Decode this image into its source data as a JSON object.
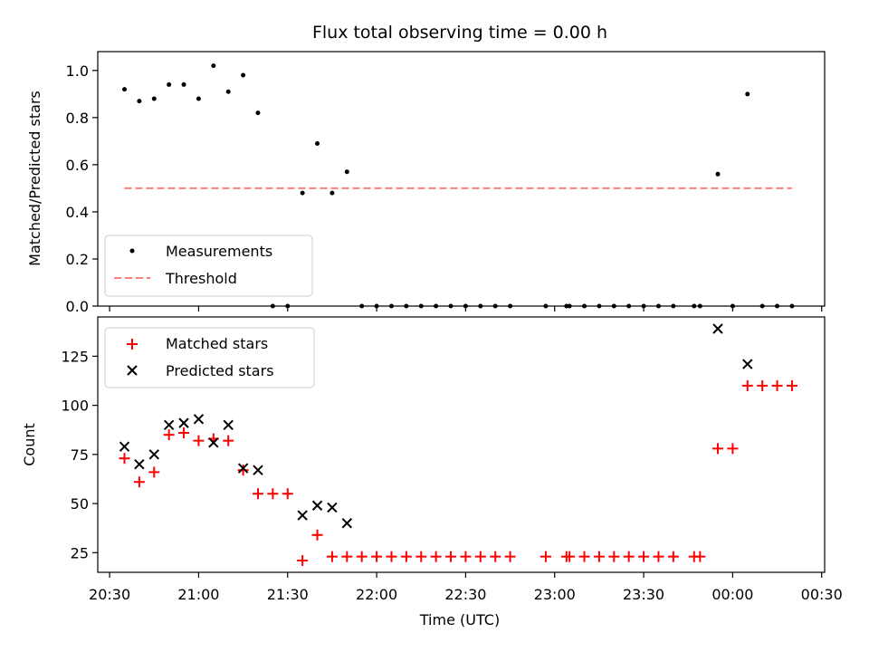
{
  "chart_data": [
    {
      "type": "scatter",
      "title": "Flux total observing time = 0.00 h",
      "xlabel": "",
      "ylabel": "Matched/Predicted stars",
      "ylim": [
        0,
        1.08
      ],
      "yticks": [
        "0.0",
        "0.2",
        "0.4",
        "0.6",
        "0.8",
        "1.0"
      ],
      "legend_position": "lower-left",
      "threshold": {
        "name": "Threshold",
        "value": 0.5,
        "x_range": [
          "20:35",
          "00:20"
        ],
        "color": "#ff7f7f",
        "style": "dashed"
      },
      "series": [
        {
          "name": "Measurements",
          "color": "#000000",
          "points": [
            {
              "x": "20:35",
              "y": 0.92
            },
            {
              "x": "20:40",
              "y": 0.87
            },
            {
              "x": "20:45",
              "y": 0.88
            },
            {
              "x": "20:50",
              "y": 0.94
            },
            {
              "x": "20:55",
              "y": 0.94
            },
            {
              "x": "21:00",
              "y": 0.88
            },
            {
              "x": "21:05",
              "y": 1.02
            },
            {
              "x": "21:10",
              "y": 0.91
            },
            {
              "x": "21:15",
              "y": 0.98
            },
            {
              "x": "21:20",
              "y": 0.82
            },
            {
              "x": "21:25",
              "y": 0.0
            },
            {
              "x": "21:30",
              "y": 0.0
            },
            {
              "x": "21:35",
              "y": 0.48
            },
            {
              "x": "21:40",
              "y": 0.69
            },
            {
              "x": "21:45",
              "y": 0.48
            },
            {
              "x": "21:50",
              "y": 0.57
            },
            {
              "x": "21:55",
              "y": 0.0
            },
            {
              "x": "22:00",
              "y": 0.0
            },
            {
              "x": "22:05",
              "y": 0.0
            },
            {
              "x": "22:10",
              "y": 0.0
            },
            {
              "x": "22:15",
              "y": 0.0
            },
            {
              "x": "22:20",
              "y": 0.0
            },
            {
              "x": "22:25",
              "y": 0.0
            },
            {
              "x": "22:30",
              "y": 0.0
            },
            {
              "x": "22:35",
              "y": 0.0
            },
            {
              "x": "22:40",
              "y": 0.0
            },
            {
              "x": "22:45",
              "y": 0.0
            },
            {
              "x": "22:57",
              "y": 0.0
            },
            {
              "x": "23:04",
              "y": 0.0
            },
            {
              "x": "23:05",
              "y": 0.0
            },
            {
              "x": "23:10",
              "y": 0.0
            },
            {
              "x": "23:15",
              "y": 0.0
            },
            {
              "x": "23:20",
              "y": 0.0
            },
            {
              "x": "23:25",
              "y": 0.0
            },
            {
              "x": "23:30",
              "y": 0.0
            },
            {
              "x": "23:35",
              "y": 0.0
            },
            {
              "x": "23:40",
              "y": 0.0
            },
            {
              "x": "23:47",
              "y": 0.0
            },
            {
              "x": "23:49",
              "y": 0.0
            },
            {
              "x": "23:55",
              "y": 0.56
            },
            {
              "x": "00:00",
              "y": 0.0
            },
            {
              "x": "00:05",
              "y": 0.9
            },
            {
              "x": "00:10",
              "y": 0.0
            },
            {
              "x": "00:15",
              "y": 0.0
            },
            {
              "x": "00:20",
              "y": 0.0
            }
          ]
        }
      ]
    },
    {
      "type": "scatter",
      "title": "",
      "xlabel": "Time (UTC)",
      "ylabel": "Count",
      "ylim": [
        15,
        145
      ],
      "yticks": [
        "25",
        "50",
        "75",
        "100",
        "125"
      ],
      "xticks": [
        "20:30",
        "21:00",
        "21:30",
        "22:00",
        "22:30",
        "23:00",
        "23:30",
        "00:00",
        "00:30"
      ],
      "xlim": [
        "20:26",
        "00:31"
      ],
      "legend_position": "upper-left",
      "series": [
        {
          "name": "Matched stars",
          "marker": "plus",
          "color": "#ff0000",
          "points": [
            {
              "x": "20:35",
              "y": 73
            },
            {
              "x": "20:40",
              "y": 61
            },
            {
              "x": "20:45",
              "y": 66
            },
            {
              "x": "20:50",
              "y": 85
            },
            {
              "x": "20:55",
              "y": 86
            },
            {
              "x": "21:00",
              "y": 82
            },
            {
              "x": "21:05",
              "y": 83
            },
            {
              "x": "21:10",
              "y": 82
            },
            {
              "x": "21:15",
              "y": 67
            },
            {
              "x": "21:20",
              "y": 55
            },
            {
              "x": "21:25",
              "y": 55
            },
            {
              "x": "21:30",
              "y": 55
            },
            {
              "x": "21:35",
              "y": 21
            },
            {
              "x": "21:40",
              "y": 34
            },
            {
              "x": "21:45",
              "y": 23
            },
            {
              "x": "21:50",
              "y": 23
            },
            {
              "x": "21:55",
              "y": 23
            },
            {
              "x": "22:00",
              "y": 23
            },
            {
              "x": "22:05",
              "y": 23
            },
            {
              "x": "22:10",
              "y": 23
            },
            {
              "x": "22:15",
              "y": 23
            },
            {
              "x": "22:20",
              "y": 23
            },
            {
              "x": "22:25",
              "y": 23
            },
            {
              "x": "22:30",
              "y": 23
            },
            {
              "x": "22:35",
              "y": 23
            },
            {
              "x": "22:40",
              "y": 23
            },
            {
              "x": "22:45",
              "y": 23
            },
            {
              "x": "22:57",
              "y": 23
            },
            {
              "x": "23:04",
              "y": 23
            },
            {
              "x": "23:05",
              "y": 23
            },
            {
              "x": "23:10",
              "y": 23
            },
            {
              "x": "23:15",
              "y": 23
            },
            {
              "x": "23:20",
              "y": 23
            },
            {
              "x": "23:25",
              "y": 23
            },
            {
              "x": "23:30",
              "y": 23
            },
            {
              "x": "23:35",
              "y": 23
            },
            {
              "x": "23:40",
              "y": 23
            },
            {
              "x": "23:47",
              "y": 23
            },
            {
              "x": "23:49",
              "y": 23
            },
            {
              "x": "23:55",
              "y": 78
            },
            {
              "x": "00:00",
              "y": 78
            },
            {
              "x": "00:05",
              "y": 110
            },
            {
              "x": "00:10",
              "y": 110
            },
            {
              "x": "00:15",
              "y": 110
            },
            {
              "x": "00:20",
              "y": 110
            }
          ]
        },
        {
          "name": "Predicted stars",
          "marker": "x",
          "color": "#000000",
          "points": [
            {
              "x": "20:35",
              "y": 79
            },
            {
              "x": "20:40",
              "y": 70
            },
            {
              "x": "20:45",
              "y": 75
            },
            {
              "x": "20:50",
              "y": 90
            },
            {
              "x": "20:55",
              "y": 91
            },
            {
              "x": "21:00",
              "y": 93
            },
            {
              "x": "21:05",
              "y": 81
            },
            {
              "x": "21:10",
              "y": 90
            },
            {
              "x": "21:15",
              "y": 68
            },
            {
              "x": "21:20",
              "y": 67
            },
            {
              "x": "21:35",
              "y": 44
            },
            {
              "x": "21:40",
              "y": 49
            },
            {
              "x": "21:45",
              "y": 48
            },
            {
              "x": "21:50",
              "y": 40
            },
            {
              "x": "23:55",
              "y": 139
            },
            {
              "x": "00:05",
              "y": 121
            }
          ]
        }
      ]
    }
  ]
}
